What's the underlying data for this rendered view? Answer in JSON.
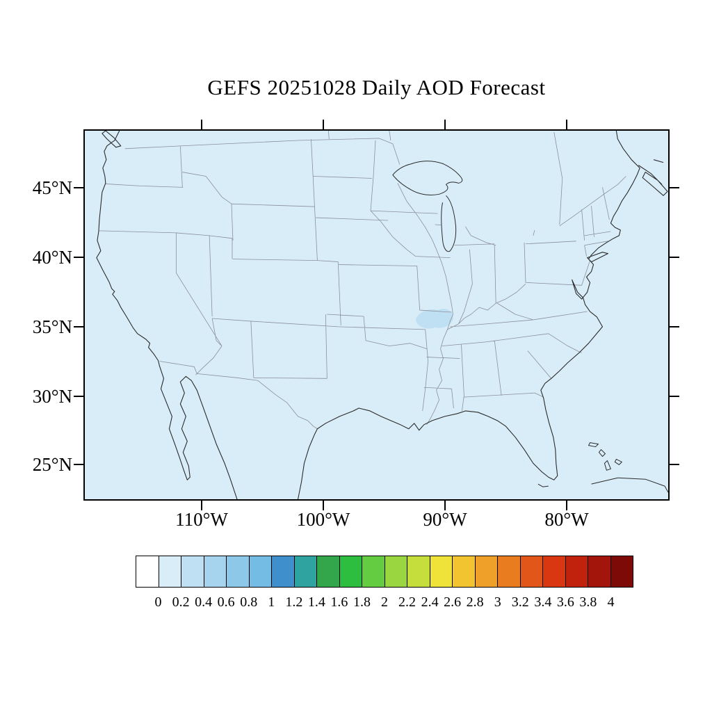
{
  "title": "GEFS 20251028 Daily AOD Forecast",
  "axes": {
    "lat_labels": [
      "45°N",
      "40°N",
      "35°N",
      "30°N",
      "25°N"
    ],
    "lon_labels": [
      "110°W",
      "100°W",
      "90°W",
      "80°W"
    ]
  },
  "map": {
    "field_background_color": "#D9EDF9",
    "aod_patch_color": "#BFE0F3",
    "coastline_color": "#2A2A2A",
    "border_color": "#8A8F98"
  },
  "colorbar": {
    "tick_labels": [
      "0",
      "0.2",
      "0.4",
      "0.6",
      "0.8",
      "1",
      "1.2",
      "1.4",
      "1.6",
      "1.8",
      "2",
      "2.2",
      "2.4",
      "2.6",
      "2.8",
      "3",
      "3.2",
      "3.4",
      "3.6",
      "3.8",
      "4"
    ],
    "colors": [
      "#FFFFFF",
      "#D9EDF9",
      "#BFE0F3",
      "#A6D4EE",
      "#8DC8E8",
      "#74BCE3",
      "#3F8FCC",
      "#2FA3A0",
      "#33A64C",
      "#2DBE3F",
      "#63CC41",
      "#9AD63F",
      "#C6DE3C",
      "#EFE238",
      "#F2C430",
      "#EFA028",
      "#EA7C20",
      "#E25619",
      "#D93612",
      "#C0220E",
      "#A3150B",
      "#7E0A08"
    ]
  },
  "chart_data": {
    "type": "heatmap",
    "title": "GEFS 20251028 Daily AOD Forecast",
    "x_ticks": [
      "110°W",
      "100°W",
      "90°W",
      "80°W"
    ],
    "y_ticks": [
      "45°N",
      "40°N",
      "35°N",
      "30°N",
      "25°N"
    ],
    "colorbar_levels": [
      0,
      0.2,
      0.4,
      0.6,
      0.8,
      1,
      1.2,
      1.4,
      1.6,
      1.8,
      2,
      2.2,
      2.4,
      2.6,
      2.8,
      3,
      3.2,
      3.4,
      3.6,
      3.8,
      4
    ],
    "field_summary": "Aerosol optical depth below 0.2 (palest blue) over the entire continental US domain, with one small area of AOD 0.2-0.4 near 90°W, 35.5°N (Missouri / Illinois / Kentucky confluence region).",
    "legend_position": "bottom",
    "grid": false
  }
}
